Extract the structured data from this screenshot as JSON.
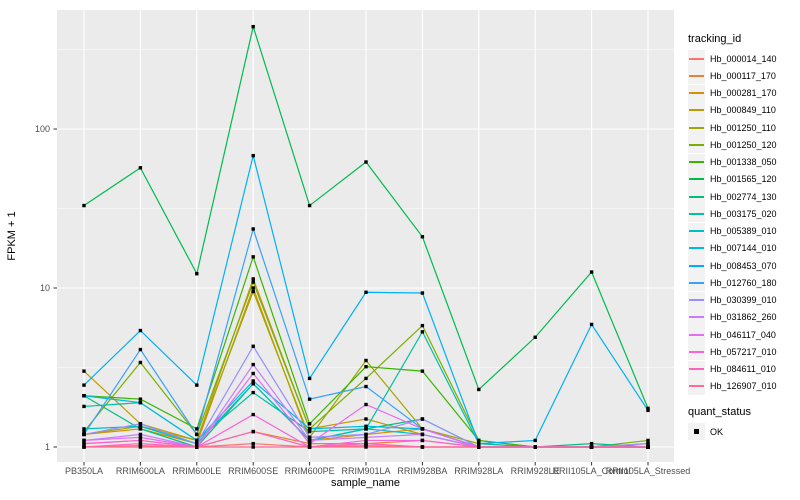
{
  "figure": {
    "background": "#FFFFFF",
    "panel_background": "#EBEBEB",
    "grid_color": "#FFFFFF",
    "tick_mark_color": "#333333",
    "tick_label_color": "#4D4D4D",
    "axis_title_color": "#000000"
  },
  "axes": {
    "x_title": "sample_name",
    "y_title": "FPKM + 1",
    "y_tick_labels": [
      "100",
      "10",
      "1"
    ]
  },
  "legend": {
    "tracking_title": "tracking_id",
    "quant_title": "quant_status",
    "quant_items": [
      {
        "label": "OK",
        "marker": "filled-black-square"
      }
    ]
  },
  "chart_data": {
    "type": "line",
    "xlabel": "sample_name",
    "ylabel": "FPKM + 1",
    "y_scale": "log10",
    "y_major_ticks": [
      1,
      10,
      100
    ],
    "y_minor_gridlines": [
      3.162,
      31.62,
      316.2
    ],
    "grid": "on",
    "legend_position": "right",
    "point_marker": {
      "shape": "filled-square",
      "color": "#000000",
      "legend_label": "OK"
    },
    "categories": [
      "PB350LA",
      "RRIM600LA",
      "RRIM600LE",
      "RRIM600SE",
      "RRIM600PE",
      "RRIM901LA",
      "RRIM928BA",
      "RRIM928LA",
      "RRIM928LE",
      "RRII105LA_Control",
      "RRII105LA_Stressed"
    ],
    "series": [
      {
        "name": "Hb_000014_140",
        "color": "#F8766D",
        "values": [
          1.0,
          1.02,
          1.0,
          1.05,
          1.0,
          1.02,
          1.0,
          1.0,
          1.0,
          1.0,
          1.0
        ]
      },
      {
        "name": "Hb_000117_170",
        "color": "#EA8331",
        "values": [
          1.05,
          1.1,
          1.0,
          1.25,
          1.05,
          1.05,
          1.1,
          1.0,
          1.0,
          1.0,
          1.0
        ]
      },
      {
        "name": "Hb_000281_170",
        "color": "#D89000",
        "values": [
          1.2,
          1.3,
          1.05,
          10.0,
          1.1,
          1.2,
          1.3,
          1.0,
          1.0,
          1.0,
          1.0
        ]
      },
      {
        "name": "Hb_000849_110",
        "color": "#C09B00",
        "values": [
          3.0,
          1.4,
          1.1,
          11.4,
          1.3,
          1.5,
          1.2,
          1.0,
          1.0,
          1.0,
          1.05
        ]
      },
      {
        "name": "Hb_001250_110",
        "color": "#A3A500",
        "values": [
          1.2,
          1.35,
          1.1,
          9.5,
          1.15,
          3.5,
          1.3,
          1.05,
          1.0,
          1.0,
          1.0
        ]
      },
      {
        "name": "Hb_001250_120",
        "color": "#7CAE00",
        "values": [
          1.25,
          3.4,
          1.2,
          10.9,
          1.3,
          2.7,
          5.8,
          1.1,
          1.0,
          1.0,
          1.1
        ]
      },
      {
        "name": "Hb_001338_050",
        "color": "#39B600",
        "values": [
          2.1,
          2.0,
          1.3,
          15.7,
          1.4,
          3.2,
          3.0,
          1.1,
          1.0,
          1.0,
          1.0
        ]
      },
      {
        "name": "Hb_001565_120",
        "color": "#00BB4E",
        "values": [
          33,
          57,
          12.3,
          440,
          33,
          62,
          21,
          2.3,
          4.9,
          12.6,
          1.75
        ]
      },
      {
        "name": "Hb_002774_130",
        "color": "#00BF7D",
        "values": [
          2.1,
          1.3,
          1.0,
          2.5,
          1.1,
          1.3,
          1.5,
          1.0,
          1.0,
          1.05,
          1.0
        ]
      },
      {
        "name": "Hb_003175_020",
        "color": "#00C1A3",
        "values": [
          1.8,
          1.9,
          1.1,
          2.2,
          1.25,
          1.3,
          5.3,
          1.05,
          1.0,
          1.0,
          1.0
        ]
      },
      {
        "name": "Hb_005389_010",
        "color": "#00BFC4",
        "values": [
          1.3,
          1.35,
          1.05,
          2.5,
          1.1,
          1.3,
          1.2,
          1.0,
          1.0,
          1.0,
          1.0
        ]
      },
      {
        "name": "Hb_007144_010",
        "color": "#00BAE0",
        "values": [
          2.1,
          1.9,
          1.1,
          2.6,
          1.3,
          1.35,
          1.3,
          1.0,
          1.0,
          1.0,
          1.0
        ]
      },
      {
        "name": "Hb_008453_070",
        "color": "#00B0F6",
        "values": [
          2.45,
          5.4,
          2.45,
          68,
          2.7,
          9.4,
          9.3,
          1.05,
          1.1,
          5.9,
          1.7
        ]
      },
      {
        "name": "Hb_012760_180",
        "color": "#35A2FF",
        "values": [
          1.2,
          4.1,
          1.2,
          23.5,
          2.0,
          2.4,
          1.3,
          1.0,
          1.0,
          1.0,
          1.0
        ]
      },
      {
        "name": "Hb_030399_010",
        "color": "#9590FF",
        "values": [
          1.2,
          1.4,
          1.05,
          4.3,
          1.15,
          1.2,
          1.5,
          1.0,
          1.0,
          1.0,
          1.05
        ]
      },
      {
        "name": "Hb_031862_260",
        "color": "#C77CFF",
        "values": [
          1.1,
          1.2,
          1.0,
          3.3,
          1.1,
          1.15,
          1.2,
          1.0,
          1.0,
          1.0,
          1.0
        ]
      },
      {
        "name": "Hb_046117_040",
        "color": "#E76BF3",
        "values": [
          1.1,
          1.15,
          1.0,
          2.9,
          1.05,
          1.85,
          1.3,
          1.0,
          1.0,
          1.0,
          1.0
        ]
      },
      {
        "name": "Hb_057217_010",
        "color": "#FA62DB",
        "values": [
          1.05,
          1.1,
          1.0,
          1.6,
          1.0,
          1.1,
          1.1,
          1.0,
          1.0,
          1.0,
          1.0
        ]
      },
      {
        "name": "Hb_084611_010",
        "color": "#FF62BC",
        "values": [
          1.0,
          1.05,
          1.0,
          1.25,
          1.0,
          1.05,
          1.0,
          1.0,
          1.0,
          1.0,
          1.0
        ]
      },
      {
        "name": "Hb_126907_010",
        "color": "#FF6A98",
        "values": [
          1.0,
          1.0,
          1.0,
          1.0,
          1.0,
          1.0,
          1.0,
          1.0,
          1.0,
          1.0,
          1.0
        ]
      }
    ]
  }
}
